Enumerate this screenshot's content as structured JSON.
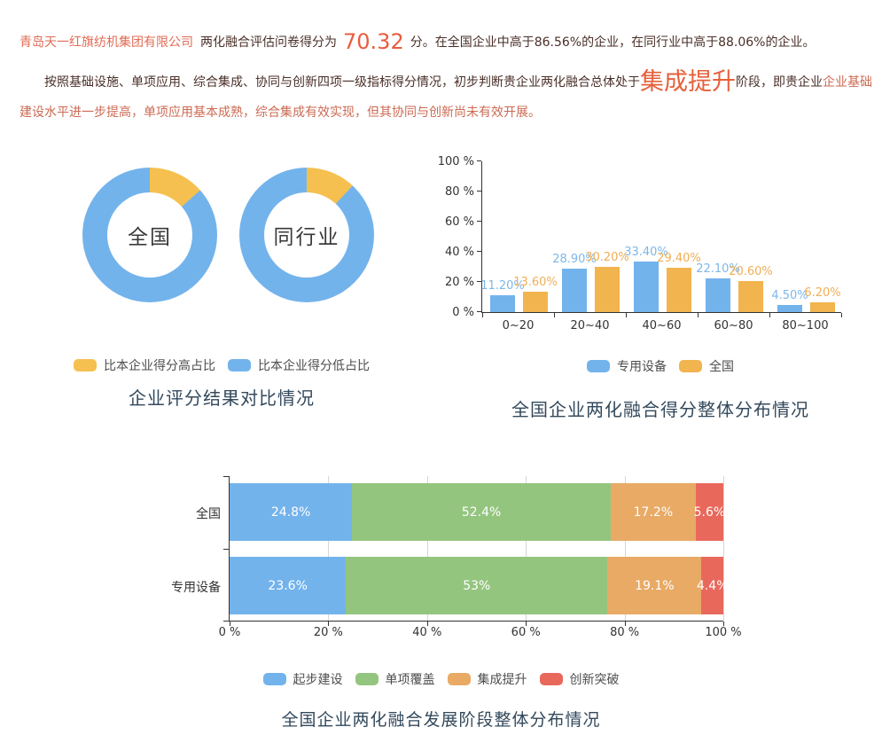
{
  "report": {
    "line1": {
      "company": "青岛天一红旗纺机集团有限公司",
      "before_score": "两化融合评估问卷得分为",
      "score": "70.32",
      "after_score": "分。在全国企业中高于86.56%的企业，在同行业中高于88.06%的企业。"
    },
    "line2": {
      "part1": "按照基础设施、单项应用、综合集成、协同与创新四项一级指标得分情况，初步判断贵企业两化融合总体处于",
      "stage": "集成提升",
      "part2": "阶段，即贵企业",
      "part3": "企业基础建设水平进一步提高，单项应用基本成熟，综合集成有效实现，但其协同与创新尚未有效开展。"
    }
  },
  "colors": {
    "company_text": "#e16b55",
    "score_text": "#e95c3e",
    "dark_text": "#4a2f28",
    "stage_text": "#e5603a",
    "light_red_text": "#cb6a52",
    "title_text": "#33495c",
    "axis_text": "#333333",
    "axis_line": "#333333",
    "legend_text": "#4d4d4d",
    "grid_line": "#d6d6d6",
    "blue": "#73b3ec",
    "yellow": "#f5c04f",
    "orange": "#f1b44e",
    "green": "#94c57f",
    "tan": "#e8aa65",
    "red": "#e9685c"
  },
  "chart_data": [
    {
      "type": "pie",
      "variant": "donut-pair",
      "title": "企业评分结果对比情况",
      "legend": [
        {
          "label": "比本企业得分高占比",
          "color": "#f5c04f"
        },
        {
          "label": "比本企业得分低占比",
          "color": "#73b3ec"
        }
      ],
      "donuts": [
        {
          "label": "全国",
          "slices": [
            {
              "name": "比本企业得分高占比",
              "value": 13.44
            },
            {
              "name": "比本企业得分低占比",
              "value": 86.56
            }
          ]
        },
        {
          "label": "同行业",
          "slices": [
            {
              "name": "比本企业得分高占比",
              "value": 11.94
            },
            {
              "name": "比本企业得分低占比",
              "value": 88.06
            }
          ]
        }
      ]
    },
    {
      "type": "bar",
      "title": "全国企业两化融合得分整体分布情况",
      "categories": [
        "0~20",
        "20~40",
        "40~60",
        "60~80",
        "80~100"
      ],
      "series": [
        {
          "name": "专用设备",
          "color": "#73b3ec",
          "label_color": "#7db7e8",
          "values": [
            11.2,
            28.9,
            33.4,
            22.1,
            4.5
          ],
          "labels": [
            "11.20%",
            "28.90%",
            "33.40%",
            "22.10%",
            "4.50%"
          ]
        },
        {
          "name": "全国",
          "color": "#f1b44e",
          "label_color": "#f0ae55",
          "values": [
            13.6,
            30.2,
            29.4,
            20.6,
            6.2
          ],
          "labels": [
            "13.60%",
            "30.20%",
            "29.40%",
            "20.60%",
            "6.20%"
          ]
        }
      ],
      "y_ticks": [
        "0 %",
        "20 %",
        "40 %",
        "60 %",
        "80 %",
        "100 %"
      ],
      "ylim": [
        0,
        100
      ],
      "grid": false,
      "legend_position": "bottom"
    },
    {
      "type": "stacked-bar",
      "orientation": "horizontal",
      "title": "全国企业两化融合发展阶段整体分布情况",
      "categories": [
        "全国",
        "专用设备"
      ],
      "series": [
        {
          "name": "起步建设",
          "color": "#73b3ec",
          "values": [
            24.8,
            23.6
          ],
          "labels": [
            "24.8%",
            "23.6%"
          ]
        },
        {
          "name": "单项覆盖",
          "color": "#94c57f",
          "values": [
            52.4,
            53
          ],
          "labels": [
            "52.4%",
            "53%"
          ]
        },
        {
          "name": "集成提升",
          "color": "#e8aa65",
          "values": [
            17.2,
            19.1
          ],
          "labels": [
            "17.2%",
            "19.1%"
          ]
        },
        {
          "name": "创新突破",
          "color": "#e9685c",
          "values": [
            5.6,
            4.4
          ],
          "labels": [
            "5.6%",
            "4.4%"
          ]
        }
      ],
      "x_ticks": [
        "0 %",
        "20 %",
        "40 %",
        "60 %",
        "80 %",
        "100 %"
      ],
      "xlim": [
        0,
        100
      ],
      "grid": true,
      "legend_position": "bottom"
    }
  ]
}
